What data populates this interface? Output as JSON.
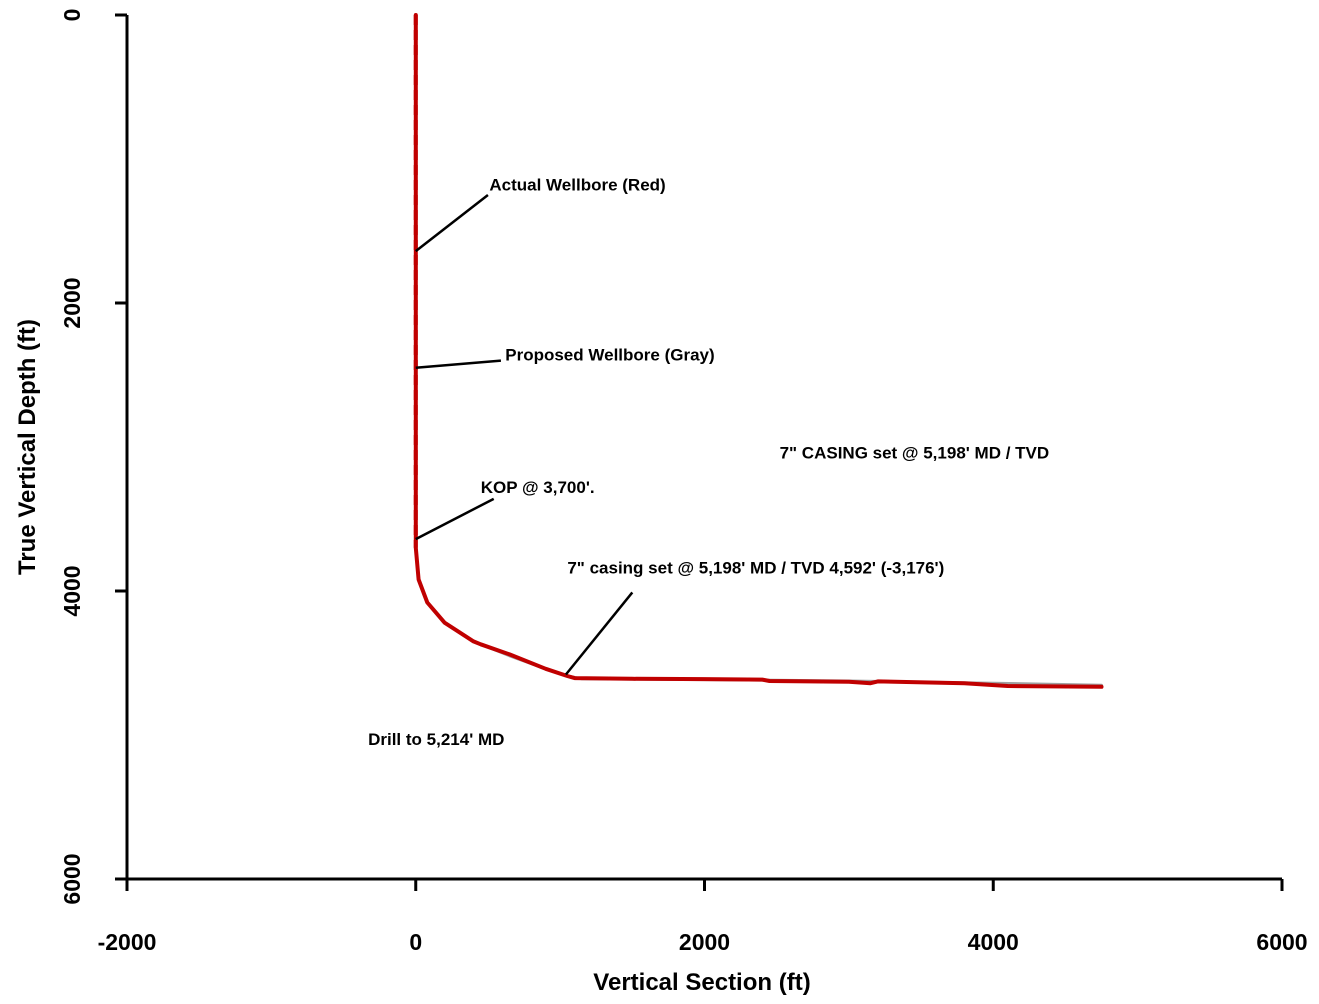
{
  "chart_data": {
    "type": "line",
    "xlabel": "Vertical Section (ft)",
    "ylabel": "True Vertical Depth (ft)",
    "xlim": [
      -2000,
      6000
    ],
    "ylim": [
      0,
      6000
    ],
    "y_inverted": true,
    "xticks": [
      "-2000",
      "0",
      "2000",
      "4000",
      "6000"
    ],
    "yticks": [
      "0",
      "2000",
      "4000",
      "6000"
    ],
    "grid": false,
    "series": [
      {
        "role": "proposed",
        "color": "#a0a0a0",
        "x": [
          0,
          0,
          0,
          0,
          0,
          20,
          80,
          200,
          400,
          650,
          900,
          1050,
          1150,
          2000,
          3000,
          4000,
          4750
        ],
        "y": [
          0,
          1000,
          2000,
          3000,
          3700,
          3920,
          4080,
          4220,
          4350,
          4450,
          4540,
          4590,
          4610,
          4615,
          4625,
          4640,
          4655
        ]
      },
      {
        "role": "actual",
        "color": "#c00000",
        "x": [
          0,
          0,
          0,
          0,
          0,
          20,
          80,
          200,
          400,
          450,
          650,
          900,
          1050,
          1100,
          1500,
          2000,
          2400,
          2450,
          3000,
          3150,
          3200,
          3800,
          4100,
          4750
        ],
        "y": [
          0,
          1000,
          2000,
          3000,
          3700,
          3920,
          4080,
          4220,
          4350,
          4370,
          4440,
          4540,
          4590,
          4605,
          4610,
          4612,
          4615,
          4625,
          4630,
          4640,
          4628,
          4640,
          4660,
          4665
        ]
      }
    ],
    "annotations": [
      {
        "text": "Actual Wellbore (Red)",
        "x": 510,
        "y": 1220,
        "tx": 0,
        "ty": 1640,
        "ax": 500,
        "ay": 1250
      },
      {
        "text": "Proposed Wellbore (Gray)",
        "x": 620,
        "y": 2400,
        "tx": 0,
        "ty": 2450,
        "ax": 590,
        "ay": 2400
      },
      {
        "text": "KOP @ 3,700'.",
        "x": 450,
        "y": 3320,
        "tx": 0,
        "ty": 3640,
        "ax": 540,
        "ay": 3360
      },
      {
        "text": "7\" casing set @ 5,198' MD / TVD 4,592' (-3,176')",
        "x": 1050,
        "y": 3880,
        "tx": 1040,
        "ty": 4580,
        "ax": 1500,
        "ay": 4010
      },
      {
        "text": "7\" CASING set @ 5,198' MD / TVD",
        "x": 2520,
        "y": 3080
      },
      {
        "text": "Drill to 5,214' MD",
        "x": -330,
        "y": 5070
      }
    ]
  }
}
